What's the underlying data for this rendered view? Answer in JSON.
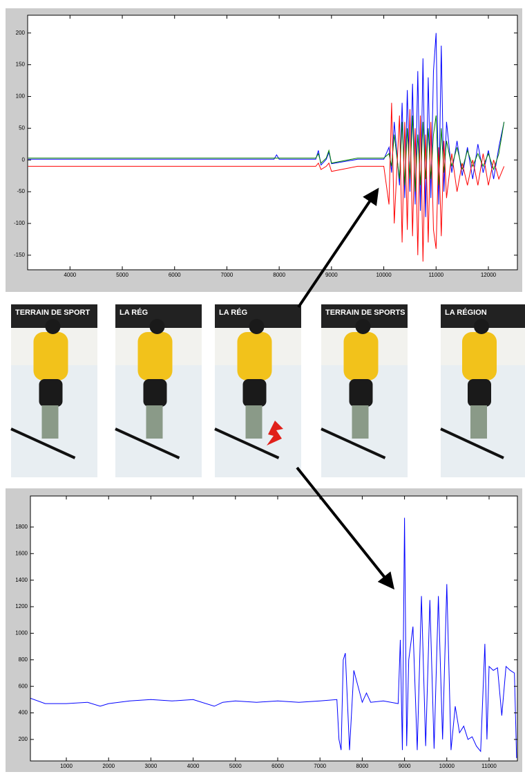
{
  "chart_data": [
    {
      "type": "line",
      "x": [
        3200,
        4000,
        5000,
        6000,
        7000,
        7900,
        7950,
        8000,
        8700,
        8750,
        8800,
        8900,
        8950,
        9000,
        9500,
        10000,
        10100,
        10150,
        10200,
        10300,
        10350,
        10400,
        10450,
        10500,
        10550,
        10600,
        10650,
        10700,
        10750,
        10800,
        10850,
        10900,
        10950,
        11000,
        11050,
        11100,
        11150,
        11200,
        11300,
        11400,
        11500,
        11600,
        11700,
        11800,
        11900,
        12000,
        12100,
        12200,
        12300
      ],
      "series": [
        {
          "color": "#0000ff",
          "values": [
            1,
            1,
            1,
            1,
            1,
            1,
            8,
            1,
            1,
            15,
            -8,
            1,
            12,
            -6,
            1,
            1,
            20,
            -20,
            60,
            -40,
            90,
            -60,
            110,
            -50,
            120,
            -70,
            140,
            -80,
            160,
            -90,
            130,
            -60,
            140,
            200,
            -70,
            180,
            -50,
            60,
            -20,
            30,
            -25,
            20,
            -30,
            25,
            -20,
            15,
            -30,
            20,
            60
          ]
        },
        {
          "color": "#008000",
          "values": [
            3,
            3,
            3,
            3,
            3,
            3,
            3,
            3,
            3,
            10,
            -5,
            3,
            15,
            -5,
            3,
            3,
            10,
            -10,
            40,
            -30,
            60,
            -40,
            50,
            -30,
            70,
            -50,
            40,
            -40,
            60,
            -30,
            50,
            -30,
            40,
            70,
            -40,
            50,
            -20,
            30,
            -10,
            20,
            -15,
            15,
            -10,
            10,
            -10,
            10,
            -15,
            10,
            60
          ]
        },
        {
          "color": "#ff0000",
          "values": [
            -10,
            -10,
            -10,
            -10,
            -10,
            -10,
            -10,
            -10,
            -10,
            -5,
            -15,
            -10,
            -5,
            -18,
            -10,
            -10,
            -70,
            90,
            -100,
            70,
            -130,
            60,
            -110,
            80,
            -120,
            50,
            -150,
            70,
            -160,
            40,
            -130,
            60,
            -110,
            -140,
            20,
            -120,
            30,
            -60,
            10,
            -50,
            -5,
            -40,
            0,
            -40,
            10,
            -40,
            0,
            -30,
            -10
          ]
        }
      ],
      "xlim": [
        3190,
        12555
      ],
      "ylim": [
        -173,
        228
      ],
      "xticks": [
        4000,
        5000,
        6000,
        7000,
        8000,
        9000,
        10000,
        11000,
        12000
      ],
      "yticks": [
        -150,
        -100,
        -50,
        0,
        50,
        100,
        150,
        200
      ]
    },
    {
      "type": "line",
      "x": [
        150,
        500,
        1000,
        1500,
        1800,
        2000,
        2500,
        3000,
        3500,
        4000,
        4500,
        4700,
        5000,
        5500,
        6000,
        6500,
        7000,
        7400,
        7450,
        7500,
        7550,
        7600,
        7700,
        7800,
        8000,
        8100,
        8200,
        8500,
        8850,
        8900,
        8950,
        9000,
        9050,
        9100,
        9200,
        9300,
        9400,
        9500,
        9600,
        9700,
        9800,
        9900,
        10000,
        10100,
        10200,
        10300,
        10400,
        10500,
        10600,
        10700,
        10800,
        10900,
        10950,
        11000,
        11100,
        11200,
        11300,
        11400,
        11500,
        11600,
        11650
      ],
      "series": [
        {
          "color": "#0000ff",
          "values": [
            510,
            470,
            470,
            480,
            450,
            470,
            490,
            500,
            490,
            500,
            450,
            480,
            490,
            480,
            490,
            480,
            490,
            500,
            200,
            120,
            800,
            850,
            120,
            720,
            480,
            550,
            480,
            490,
            470,
            950,
            120,
            1870,
            150,
            800,
            1050,
            120,
            1280,
            150,
            1250,
            130,
            1280,
            200,
            1370,
            120,
            450,
            250,
            300,
            200,
            220,
            150,
            110,
            920,
            200,
            750,
            720,
            740,
            380,
            750,
            720,
            700,
            60
          ]
        }
      ],
      "xlim": [
        150,
        11670
      ],
      "ylim": [
        38,
        2034
      ],
      "xticks": [
        1000,
        2000,
        3000,
        4000,
        5000,
        6000,
        7000,
        8000,
        9000,
        10000,
        11000
      ],
      "yticks": [
        200,
        400,
        600,
        800,
        1000,
        1200,
        1400,
        1600,
        1800
      ]
    }
  ],
  "photos": [
    "TERRAIN DE SPORT",
    "LA RÉG",
    "LA RÉG",
    "TERRAIN DE SPORTS",
    "LA RÉGION"
  ]
}
